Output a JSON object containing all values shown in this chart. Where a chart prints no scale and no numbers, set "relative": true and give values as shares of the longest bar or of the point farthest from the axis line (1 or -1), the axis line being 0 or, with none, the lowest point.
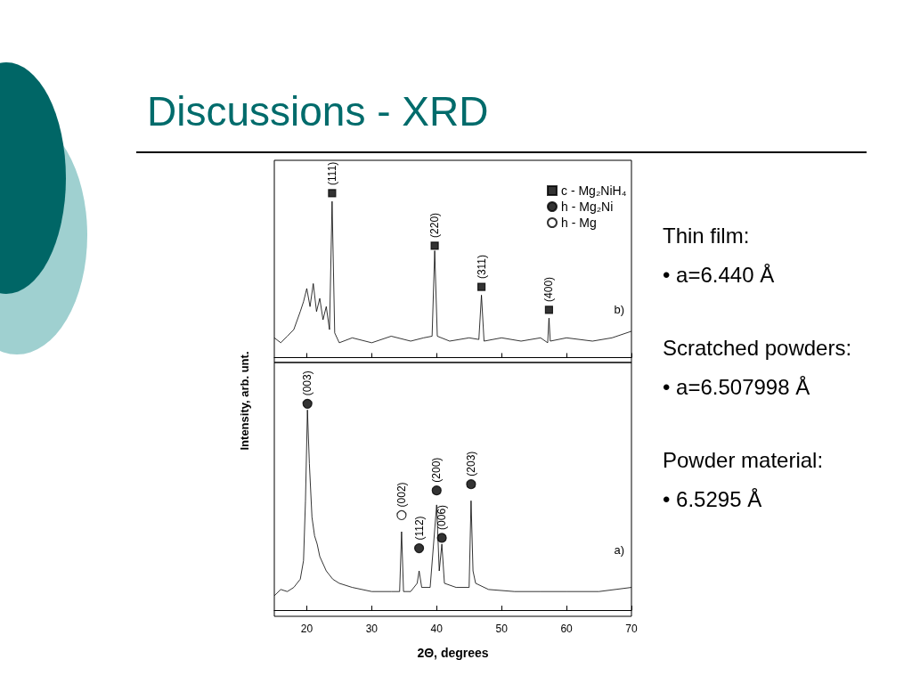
{
  "chart_data": [
    {
      "type": "line",
      "title": "Discussions - XRD",
      "ylabel": "Intensity, arb. unt.",
      "relative": true,
      "xlim": [
        15,
        70
      ],
      "xticks": [
        20,
        30,
        40,
        50,
        60,
        70
      ],
      "tick_labels": false,
      "legend": "top right",
      "grid": false,
      "series": [
        {
          "type": "line",
          "color": "#000000",
          "marker": "none",
          "x": [
            15,
            16,
            17,
            18,
            19,
            19.5,
            20,
            20.5,
            21,
            21.5,
            22,
            22.5,
            23,
            23.5,
            23.9,
            24.3,
            25,
            27,
            30,
            33,
            36,
            38,
            39.3,
            39.7,
            40.1,
            42,
            45,
            46.5,
            46.9,
            47.3,
            50,
            53,
            56,
            57.1,
            57.3,
            57.5,
            60,
            64,
            67,
            70
          ],
          "values": [
            0.12,
            0.09,
            0.13,
            0.17,
            0.28,
            0.34,
            0.42,
            0.31,
            0.45,
            0.28,
            0.36,
            0.23,
            0.31,
            0.17,
            0.95,
            0.15,
            0.09,
            0.12,
            0.09,
            0.13,
            0.1,
            0.12,
            0.13,
            0.65,
            0.13,
            0.1,
            0.12,
            0.11,
            0.38,
            0.1,
            0.12,
            0.1,
            0.12,
            0.09,
            0.24,
            0.1,
            0.12,
            0.1,
            0.12,
            0.16
          ]
        },
        {
          "type": "scatter",
          "name": "c - Mg₂NiH₄",
          "color": "#000000",
          "marker": "square",
          "x": [
            23.9,
            39.7,
            46.9,
            57.3
          ],
          "values": [
            1.0,
            0.68,
            0.43,
            0.29
          ]
        }
      ],
      "annotations": [
        {
          "text": "(111)",
          "x": 23.9,
          "y": 1.0
        },
        {
          "text": "(220)",
          "x": 39.7,
          "y": 0.68
        },
        {
          "text": "(311)",
          "x": 46.9,
          "y": 0.43
        },
        {
          "text": "(400)",
          "x": 57.3,
          "y": 0.29
        },
        "b)"
      ]
    },
    {
      "type": "line",
      "xlabel": "2Θ, degrees",
      "relative": true,
      "xlim": [
        15,
        70
      ],
      "xticks": [
        20,
        30,
        40,
        50,
        60,
        70
      ],
      "tick_labels": "x",
      "grid": false,
      "series": [
        {
          "type": "line",
          "color": "#000000",
          "marker": "none",
          "x": [
            15,
            16,
            17,
            18,
            19,
            19.5,
            19.8,
            20.1,
            20.4,
            20.8,
            21.2,
            21.6,
            22,
            23,
            24,
            25,
            27,
            30,
            33,
            34.3,
            34.6,
            34.9,
            36,
            37,
            37.3,
            37.7,
            39,
            40,
            40.4,
            40.8,
            41.2,
            43,
            45,
            45.3,
            45.6,
            46,
            48,
            52,
            56,
            60,
            65,
            70
          ],
          "values": [
            0.07,
            0.1,
            0.09,
            0.11,
            0.15,
            0.24,
            0.53,
            0.97,
            0.71,
            0.45,
            0.36,
            0.32,
            0.26,
            0.19,
            0.15,
            0.13,
            0.11,
            0.09,
            0.09,
            0.09,
            0.38,
            0.09,
            0.09,
            0.13,
            0.19,
            0.11,
            0.11,
            0.51,
            0.19,
            0.32,
            0.13,
            0.11,
            0.11,
            0.53,
            0.19,
            0.13,
            0.1,
            0.09,
            0.09,
            0.09,
            0.09,
            0.11
          ]
        },
        {
          "type": "scatter",
          "name": "h - Mg₂Ni",
          "color": "#000000",
          "marker": "circle",
          "x": [
            20.1,
            37.3,
            40.0,
            40.8,
            45.3
          ],
          "values": [
            1.0,
            0.3,
            0.58,
            0.35,
            0.61
          ]
        },
        {
          "type": "scatter",
          "name": "h - Mg",
          "color": "#ffffff",
          "marker": "circle",
          "x": [
            34.6
          ],
          "values": [
            0.46
          ]
        }
      ],
      "annotations": [
        {
          "text": "(003)",
          "x": 20.1,
          "y": 1.0
        },
        {
          "text": "(002)",
          "x": 34.6,
          "y": 0.46
        },
        {
          "text": "(112)",
          "x": 37.3,
          "y": 0.3
        },
        {
          "text": "(200)",
          "x": 40.0,
          "y": 0.58
        },
        {
          "text": "(006)",
          "x": 40.8,
          "y": 0.35
        },
        {
          "text": "(203)",
          "x": 45.3,
          "y": 0.61
        },
        "a)"
      ]
    },
    {
      "type": "other",
      "annotations": [
        "Thin film:",
        "• a=6.440 Å",
        "Scratched powders:",
        "• a=6.507998 Å",
        "Powder material:",
        "• 6.5295 Å"
      ]
    }
  ]
}
